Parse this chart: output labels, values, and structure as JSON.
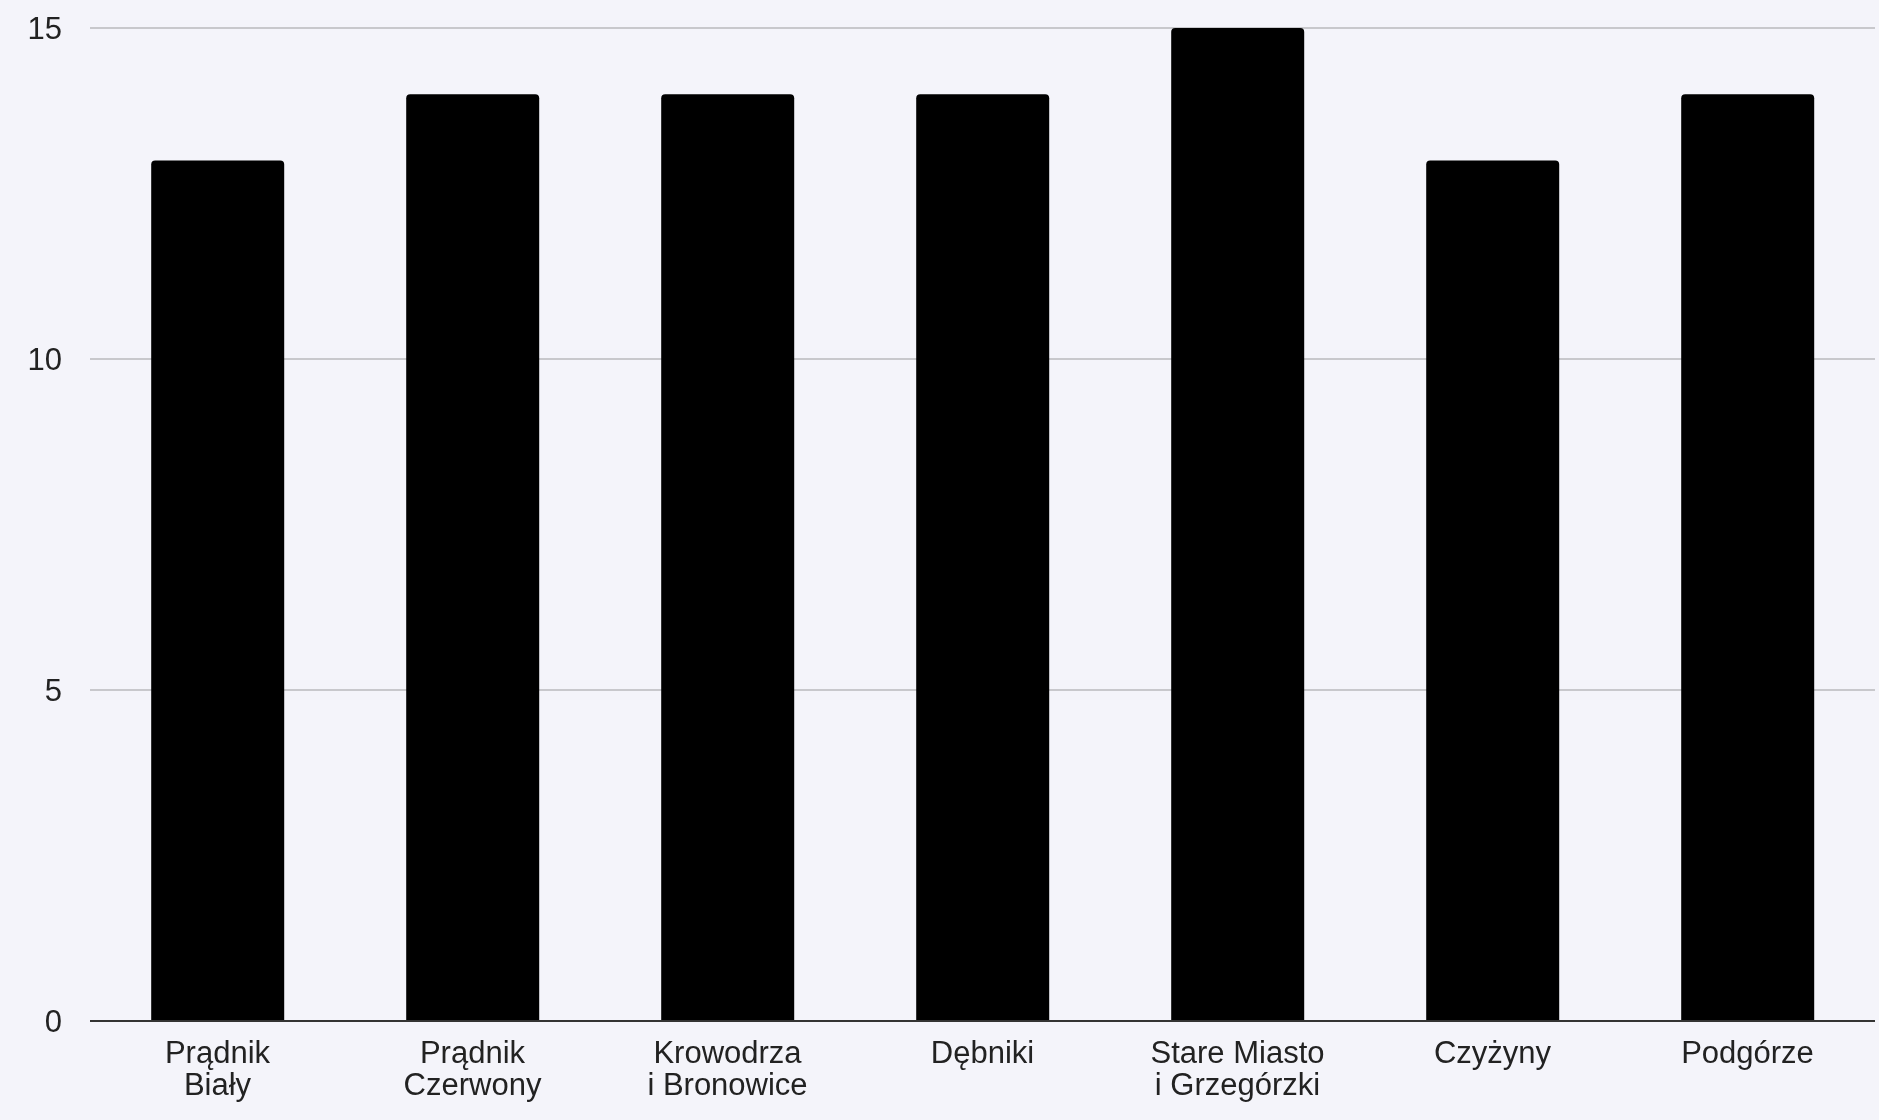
{
  "chart_data": {
    "type": "bar",
    "categories": [
      "Prądnik\nBiały",
      "Prądnik\nCzerwony",
      "Krowodrza\ni Bronowice",
      "Dębniki",
      "Stare Miasto\ni Grzegórzki",
      "Czyżyny",
      "Podgórze"
    ],
    "values": [
      13,
      14,
      14,
      14,
      15,
      13,
      14
    ],
    "color": "#000000",
    "ylim": [
      0,
      15
    ],
    "yticks": [
      0,
      5,
      10,
      15
    ],
    "grid": "y"
  }
}
